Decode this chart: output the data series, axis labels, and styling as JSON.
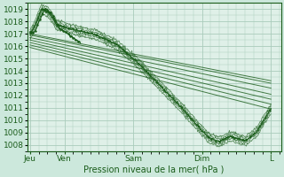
{
  "background_color": "#cce8dc",
  "grid_color": "#aaccbb",
  "line_color": "#1a5c1a",
  "ylabel_values": [
    1008,
    1009,
    1010,
    1011,
    1012,
    1013,
    1014,
    1015,
    1016,
    1017,
    1018,
    1019
  ],
  "ylim": [
    1007.5,
    1019.5
  ],
  "xlabel": "Pression niveau de la mer( hPa )",
  "xtick_labels": [
    "Jeu",
    "Ven",
    "Sam",
    "Dim",
    "L"
  ],
  "xtick_positions": [
    0,
    24,
    72,
    120,
    168
  ],
  "xlim": [
    -2,
    175
  ],
  "plot_bg": "#dff0e8"
}
